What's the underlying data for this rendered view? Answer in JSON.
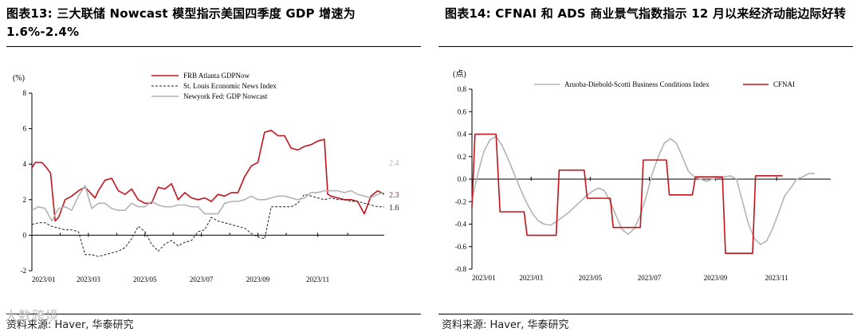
{
  "left": {
    "title": "图表13:  三大联储 Nowcast 模型指示美国四季度 GDP 增速为 1.6%-2.4%",
    "source": "资料来源: Haver, 华泰研究",
    "watermark": "大数跨境"
  },
  "right": {
    "title": "图表14:  CFNAI 和 ADS 商业景气指数指示 12 月以来经济动能边际好转",
    "source": "资料来源: Haver, 华泰研究"
  },
  "chart_data": [
    {
      "type": "line",
      "unit_label": "(%)",
      "ylim": [
        -2,
        8
      ],
      "yticks": [
        -2,
        0,
        2,
        4,
        6,
        8
      ],
      "xticks": [
        "2023/01",
        "2023/03",
        "2023/05",
        "2023/07",
        "2023/09",
        "2023/11"
      ],
      "xtick_positions": [
        0,
        8.5,
        17,
        25.5,
        34,
        43
      ],
      "xlim": [
        0,
        53
      ],
      "legend_position": "top-center",
      "series": [
        {
          "name": "FRB Atlanta GDPNow",
          "color": "#c0141c",
          "style": "solid",
          "points": [
            [
              0,
              3.8
            ],
            [
              0.5,
              4.1
            ],
            [
              1.5,
              4.1
            ],
            [
              2,
              3.9
            ],
            [
              2.8,
              3.5
            ],
            [
              3.5,
              0.8
            ],
            [
              4,
              1.0
            ],
            [
              5,
              2.0
            ],
            [
              6,
              2.2
            ],
            [
              7,
              2.5
            ],
            [
              8,
              2.7
            ],
            [
              8.5,
              2.5
            ],
            [
              9.5,
              2.1
            ],
            [
              10,
              2.5
            ],
            [
              11,
              3.1
            ],
            [
              12,
              3.2
            ],
            [
              13,
              2.5
            ],
            [
              14,
              2.3
            ],
            [
              15,
              2.6
            ],
            [
              16,
              2.0
            ],
            [
              17,
              1.8
            ],
            [
              18,
              1.8
            ],
            [
              19,
              2.7
            ],
            [
              20,
              2.6
            ],
            [
              21,
              2.9
            ],
            [
              22,
              2.0
            ],
            [
              23,
              2.4
            ],
            [
              24,
              2.1
            ],
            [
              25,
              2.0
            ],
            [
              26,
              2.1
            ],
            [
              27,
              1.9
            ],
            [
              28,
              2.3
            ],
            [
              29,
              2.2
            ],
            [
              30,
              2.4
            ],
            [
              31,
              2.4
            ],
            [
              32,
              3.3
            ],
            [
              33,
              3.9
            ],
            [
              34,
              4.1
            ],
            [
              35,
              5.8
            ],
            [
              36,
              5.9
            ],
            [
              37,
              5.6
            ],
            [
              38,
              5.6
            ],
            [
              39,
              4.9
            ],
            [
              40,
              4.8
            ],
            [
              41,
              5.0
            ],
            [
              42,
              5.1
            ],
            [
              43,
              5.3
            ],
            [
              44,
              5.4
            ],
            [
              44.5,
              2.3
            ],
            [
              45,
              2.2
            ],
            [
              46,
              2.1
            ],
            [
              47,
              2.0
            ],
            [
              48,
              2.0
            ],
            [
              49,
              1.9
            ],
            [
              50,
              1.2
            ],
            [
              51,
              2.2
            ],
            [
              52,
              2.5
            ],
            [
              53,
              2.3
            ]
          ],
          "end_label": "2.3"
        },
        {
          "name": "St. Louis Economic News Index",
          "color": "#222222",
          "style": "dashed",
          "points": [
            [
              0,
              0.6
            ],
            [
              1,
              0.7
            ],
            [
              2,
              0.7
            ],
            [
              3,
              0.5
            ],
            [
              4,
              0.4
            ],
            [
              5,
              0.3
            ],
            [
              6,
              0.3
            ],
            [
              7,
              0.2
            ],
            [
              8,
              -1.1
            ],
            [
              9,
              -1.1
            ],
            [
              10,
              -1.2
            ],
            [
              11,
              -1.1
            ],
            [
              12,
              -1.0
            ],
            [
              13,
              -0.9
            ],
            [
              14,
              -0.7
            ],
            [
              15,
              -0.2
            ],
            [
              16,
              0.5
            ],
            [
              17,
              0.2
            ],
            [
              18,
              -0.5
            ],
            [
              19,
              -0.9
            ],
            [
              20,
              -0.5
            ],
            [
              21,
              -0.3
            ],
            [
              22,
              -0.6
            ],
            [
              23,
              -0.4
            ],
            [
              24,
              -0.3
            ],
            [
              25,
              0.2
            ],
            [
              26,
              0.3
            ],
            [
              27,
              1.0
            ],
            [
              28,
              0.8
            ],
            [
              29,
              0.7
            ],
            [
              30,
              0.6
            ],
            [
              31,
              0.5
            ],
            [
              32,
              0.4
            ],
            [
              33,
              0.1
            ],
            [
              34,
              -0.1
            ],
            [
              35,
              -0.2
            ],
            [
              36,
              1.6
            ],
            [
              37,
              1.6
            ],
            [
              38,
              1.6
            ],
            [
              39,
              1.6
            ],
            [
              40,
              1.8
            ],
            [
              41,
              2.3
            ],
            [
              42,
              2.2
            ],
            [
              43,
              2.1
            ],
            [
              44,
              2.0
            ],
            [
              45,
              2.1
            ],
            [
              46,
              2.0
            ],
            [
              47,
              2.0
            ],
            [
              48,
              1.9
            ],
            [
              49,
              1.9
            ],
            [
              50,
              1.8
            ],
            [
              51,
              1.7
            ],
            [
              52,
              1.6
            ],
            [
              53,
              1.6
            ]
          ],
          "end_label": "1.6"
        },
        {
          "name": "Newyork Fed: GDP Nowcast",
          "color": "#b3b3b3",
          "style": "solid",
          "points": [
            [
              0,
              1.4
            ],
            [
              1,
              1.6
            ],
            [
              2,
              1.5
            ],
            [
              3,
              0.8
            ],
            [
              4,
              1.5
            ],
            [
              5,
              1.6
            ],
            [
              6,
              1.4
            ],
            [
              7,
              2.2
            ],
            [
              8,
              2.8
            ],
            [
              9,
              1.5
            ],
            [
              10,
              1.8
            ],
            [
              11,
              1.8
            ],
            [
              12,
              1.5
            ],
            [
              13,
              1.4
            ],
            [
              14,
              1.4
            ],
            [
              15,
              1.8
            ],
            [
              16,
              1.6
            ],
            [
              17,
              1.6
            ],
            [
              18,
              1.9
            ],
            [
              19,
              1.7
            ],
            [
              20,
              1.6
            ],
            [
              21,
              1.6
            ],
            [
              22,
              1.7
            ],
            [
              23,
              1.7
            ],
            [
              24,
              1.6
            ],
            [
              25,
              1.6
            ],
            [
              26,
              1.2
            ],
            [
              27,
              1.2
            ],
            [
              28,
              1.2
            ],
            [
              29,
              1.8
            ],
            [
              30,
              1.9
            ],
            [
              31,
              1.9
            ],
            [
              32,
              2.0
            ],
            [
              33,
              2.2
            ],
            [
              34,
              2.0
            ],
            [
              35,
              2.0
            ],
            [
              36,
              2.1
            ],
            [
              37,
              2.2
            ],
            [
              38,
              2.2
            ],
            [
              39,
              2.1
            ],
            [
              40,
              2.0
            ],
            [
              41,
              2.1
            ],
            [
              42,
              2.4
            ],
            [
              43,
              2.4
            ],
            [
              44,
              2.5
            ],
            [
              45,
              2.5
            ],
            [
              46,
              2.5
            ],
            [
              47,
              2.4
            ],
            [
              48,
              2.5
            ],
            [
              49,
              2.3
            ],
            [
              50,
              2.2
            ],
            [
              51,
              2.1
            ],
            [
              52,
              2.3
            ],
            [
              53,
              2.4
            ]
          ],
          "end_label": "2.4"
        }
      ]
    },
    {
      "type": "line",
      "unit_label": "(点)",
      "ylim": [
        -0.8,
        0.8
      ],
      "yticks": [
        -0.8,
        -0.6,
        -0.4,
        -0.2,
        0.0,
        0.2,
        0.4,
        0.6,
        0.8
      ],
      "xticks": [
        "2023/01",
        "2023/03",
        "2023/05",
        "2023/07",
        "2023/09",
        "2023/11"
      ],
      "xtick_positions": [
        0,
        59,
        118,
        177,
        243,
        304
      ],
      "xlim": [
        0,
        358
      ],
      "legend_position": "top",
      "series": [
        {
          "name": "Aruoba-Diebold-Scotti Business Conditions Index",
          "color": "#b3b3b3",
          "style": "solid",
          "points": [
            [
              0,
              -0.18
            ],
            [
              6,
              0.05
            ],
            [
              12,
              0.25
            ],
            [
              18,
              0.35
            ],
            [
              24,
              0.38
            ],
            [
              30,
              0.3
            ],
            [
              36,
              0.18
            ],
            [
              42,
              0.05
            ],
            [
              48,
              -0.08
            ],
            [
              54,
              -0.2
            ],
            [
              60,
              -0.3
            ],
            [
              66,
              -0.37
            ],
            [
              72,
              -0.4
            ],
            [
              78,
              -0.41
            ],
            [
              84,
              -0.38
            ],
            [
              90,
              -0.34
            ],
            [
              96,
              -0.3
            ],
            [
              102,
              -0.25
            ],
            [
              108,
              -0.2
            ],
            [
              114,
              -0.15
            ],
            [
              120,
              -0.11
            ],
            [
              126,
              -0.08
            ],
            [
              132,
              -0.1
            ],
            [
              138,
              -0.2
            ],
            [
              144,
              -0.33
            ],
            [
              150,
              -0.45
            ],
            [
              156,
              -0.49
            ],
            [
              162,
              -0.44
            ],
            [
              168,
              -0.32
            ],
            [
              174,
              -0.15
            ],
            [
              180,
              0.05
            ],
            [
              186,
              0.2
            ],
            [
              192,
              0.32
            ],
            [
              198,
              0.36
            ],
            [
              204,
              0.32
            ],
            [
              210,
              0.2
            ],
            [
              216,
              0.07
            ],
            [
              222,
              0.02
            ],
            [
              228,
              0.0
            ],
            [
              234,
              -0.02
            ],
            [
              240,
              0.0
            ],
            [
              246,
              0.01
            ],
            [
              252,
              0.02
            ],
            [
              258,
              0.03
            ],
            [
              264,
              0.0
            ],
            [
              270,
              -0.2
            ],
            [
              276,
              -0.4
            ],
            [
              282,
              -0.53
            ],
            [
              288,
              -0.58
            ],
            [
              294,
              -0.55
            ],
            [
              300,
              -0.44
            ],
            [
              306,
              -0.3
            ],
            [
              312,
              -0.15
            ],
            [
              318,
              -0.08
            ],
            [
              324,
              0.0
            ],
            [
              330,
              0.02
            ],
            [
              336,
              0.05
            ],
            [
              342,
              0.05
            ]
          ]
        },
        {
          "name": "CFNAI",
          "color": "#c0141c",
          "style": "solid",
          "points": [
            [
              0,
              -0.25
            ],
            [
              3,
              0.4
            ],
            [
              24,
              0.4
            ],
            [
              28,
              -0.29
            ],
            [
              52,
              -0.29
            ],
            [
              55,
              -0.5
            ],
            [
              84,
              -0.5
            ],
            [
              87,
              0.08
            ],
            [
              112,
              0.08
            ],
            [
              115,
              -0.17
            ],
            [
              138,
              -0.17
            ],
            [
              141,
              -0.43
            ],
            [
              168,
              -0.43
            ],
            [
              171,
              0.17
            ],
            [
              194,
              0.17
            ],
            [
              197,
              -0.14
            ],
            [
              220,
              -0.14
            ],
            [
              223,
              0.02
            ],
            [
              250,
              0.02
            ],
            [
              253,
              -0.66
            ],
            [
              280,
              -0.66
            ],
            [
              283,
              0.03
            ],
            [
              310,
              0.03
            ]
          ]
        }
      ]
    }
  ]
}
